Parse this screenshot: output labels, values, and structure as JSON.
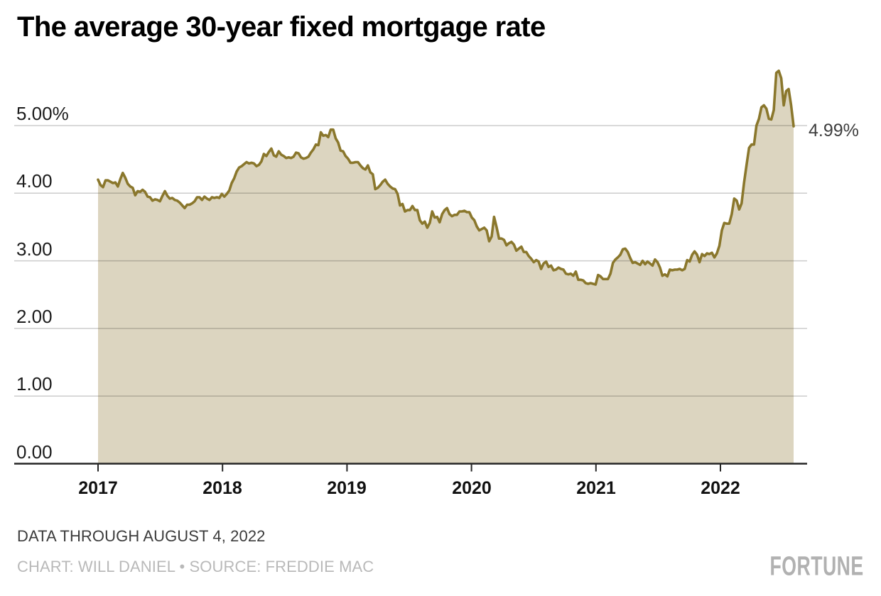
{
  "header": {
    "title": "The average 30-year fixed mortgage rate"
  },
  "annotation": {
    "end_label": "4.99%"
  },
  "footer": {
    "note": "DATA THROUGH AUGUST 4, 2022",
    "credit": "CHART: WILL DANIEL • SOURCE: FREDDIE MAC",
    "logo": "FORTUNE"
  },
  "colors": {
    "line": "#8A772C",
    "fill": "#DCD5C0",
    "grid": "rgba(0,0,0,0.2)",
    "axis": "#262626",
    "title_text": "#000000",
    "tick_text": "#1c1c1c",
    "annotation_text": "#3e3e3e",
    "note_text": "#3b3b3b",
    "credit_text": "#b9b9b9",
    "logo_text": "#b1b1b1"
  },
  "chart_data": {
    "type": "area",
    "title": "The average 30-year fixed mortgage rate",
    "xlabel": "",
    "ylabel": "",
    "unit": "percent",
    "frequency": "weekly",
    "x_start": "2017-01-05",
    "x_end": "2022-08-04",
    "ylim": [
      0,
      6.1
    ],
    "grid": true,
    "x_tick_labels": [
      "2017",
      "2018",
      "2019",
      "2020",
      "2021",
      "2022"
    ],
    "x_tick_years": [
      2017,
      2018,
      2019,
      2020,
      2021,
      2022
    ],
    "y_tick_labels": [
      "5.00%",
      "4.00",
      "3.00",
      "2.00",
      "1.00",
      "0.00"
    ],
    "y_tick_values": [
      5,
      4,
      3,
      2,
      1,
      0
    ],
    "last_value": 4.99,
    "values": [
      4.2,
      4.12,
      4.09,
      4.19,
      4.19,
      4.17,
      4.15,
      4.16,
      4.1,
      4.21,
      4.3,
      4.23,
      4.14,
      4.1,
      4.08,
      3.97,
      4.03,
      4.02,
      4.05,
      4.02,
      3.95,
      3.94,
      3.89,
      3.91,
      3.9,
      3.88,
      3.96,
      4.03,
      3.96,
      3.92,
      3.93,
      3.9,
      3.89,
      3.86,
      3.82,
      3.78,
      3.83,
      3.83,
      3.85,
      3.88,
      3.94,
      3.94,
      3.9,
      3.95,
      3.92,
      3.9,
      3.94,
      3.93,
      3.94,
      3.93,
      3.99,
      3.95,
      3.99,
      4.04,
      4.15,
      4.22,
      4.32,
      4.38,
      4.4,
      4.43,
      4.46,
      4.44,
      4.45,
      4.44,
      4.4,
      4.42,
      4.47,
      4.58,
      4.55,
      4.61,
      4.66,
      4.56,
      4.54,
      4.62,
      4.57,
      4.55,
      4.52,
      4.53,
      4.52,
      4.54,
      4.6,
      4.59,
      4.53,
      4.51,
      4.52,
      4.54,
      4.6,
      4.65,
      4.72,
      4.71,
      4.9,
      4.85,
      4.86,
      4.83,
      4.94,
      4.94,
      4.81,
      4.75,
      4.63,
      4.62,
      4.55,
      4.51,
      4.45,
      4.45,
      4.46,
      4.46,
      4.41,
      4.37,
      4.35,
      4.41,
      4.31,
      4.28,
      4.06,
      4.08,
      4.12,
      4.17,
      4.2,
      4.14,
      4.1,
      4.07,
      4.06,
      3.99,
      3.82,
      3.84,
      3.73,
      3.75,
      3.75,
      3.81,
      3.75,
      3.75,
      3.6,
      3.55,
      3.58,
      3.49,
      3.56,
      3.73,
      3.64,
      3.65,
      3.57,
      3.69,
      3.75,
      3.78,
      3.69,
      3.66,
      3.68,
      3.68,
      3.73,
      3.73,
      3.74,
      3.72,
      3.72,
      3.64,
      3.6,
      3.51,
      3.45,
      3.47,
      3.49,
      3.45,
      3.29,
      3.36,
      3.65,
      3.5,
      3.33,
      3.33,
      3.31,
      3.23,
      3.26,
      3.28,
      3.24,
      3.15,
      3.18,
      3.21,
      3.13,
      3.13,
      3.07,
      3.03,
      2.98,
      3.01,
      2.99,
      2.88,
      2.96,
      2.99,
      2.91,
      2.93,
      2.86,
      2.87,
      2.9,
      2.88,
      2.87,
      2.81,
      2.8,
      2.81,
      2.78,
      2.84,
      2.72,
      2.72,
      2.71,
      2.67,
      2.66,
      2.67,
      2.66,
      2.65,
      2.79,
      2.77,
      2.73,
      2.73,
      2.73,
      2.81,
      2.97,
      3.02,
      3.05,
      3.09,
      3.17,
      3.18,
      3.13,
      3.04,
      2.97,
      2.98,
      2.96,
      2.94,
      3.0,
      2.95,
      2.99,
      2.96,
      2.93,
      3.02,
      2.98,
      2.9,
      2.78,
      2.8,
      2.77,
      2.87,
      2.86,
      2.87,
      2.87,
      2.88,
      2.86,
      2.88,
      3.01,
      2.99,
      3.09,
      3.14,
      3.09,
      2.98,
      3.1,
      3.07,
      3.11,
      3.1,
      3.12,
      3.05,
      3.11,
      3.22,
      3.45,
      3.56,
      3.55,
      3.55,
      3.69,
      3.92,
      3.89,
      3.76,
      3.85,
      4.16,
      4.42,
      4.67,
      4.72,
      4.72,
      5.0,
      5.1,
      5.27,
      5.3,
      5.25,
      5.1,
      5.09,
      5.23,
      5.78,
      5.81,
      5.7,
      5.3,
      5.51,
      5.54,
      5.3,
      4.99
    ]
  }
}
